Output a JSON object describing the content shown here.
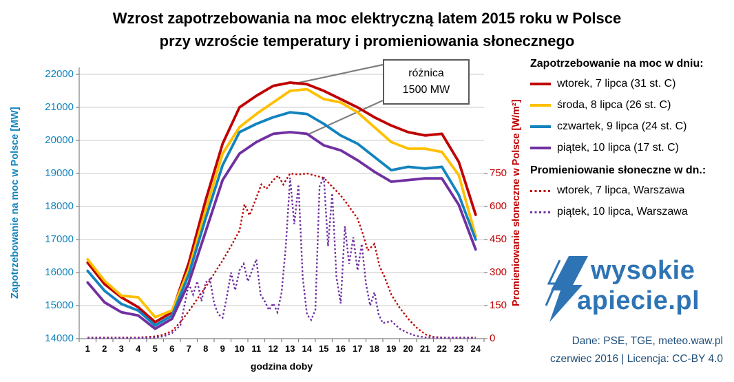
{
  "title": {
    "line1": "Wzrost zapotrzebowania na moc elektryczną latem 2015 roku w Polsce",
    "line2": "przy wzroście temperatury i promieniowania słonecznego"
  },
  "chart_data": {
    "type": "line",
    "x_label": "godzina doby",
    "x_ticks": [
      1,
      2,
      3,
      4,
      5,
      6,
      7,
      8,
      9,
      10,
      11,
      12,
      13,
      14,
      15,
      16,
      17,
      18,
      19,
      20,
      21,
      22,
      23,
      24
    ],
    "left_axis": {
      "label": "Zapotrzebowanie na moc w Polsce [MW]",
      "range": [
        14000,
        22000
      ],
      "ticks": [
        14000,
        15000,
        16000,
        17000,
        18000,
        19000,
        20000,
        21000,
        22000
      ],
      "color": "#1283BE"
    },
    "right_axis": {
      "label": "Promieniowanie słoneczne w Polsce [W/m²]",
      "range": [
        0,
        1200
      ],
      "labeled_ticks": [
        0,
        150,
        300,
        450,
        600,
        750
      ],
      "color": "#C00000"
    },
    "demand_series": [
      {
        "name": "wtorek, 7 lipca (31 st. C)",
        "color": "#C00000",
        "style": "solid",
        "values": [
          16300,
          15650,
          15250,
          14950,
          14500,
          14800,
          16300,
          18200,
          19900,
          21000,
          21350,
          21650,
          21750,
          21700,
          21500,
          21250,
          21000,
          20700,
          20450,
          20250,
          20150,
          20200,
          19350,
          17750
        ]
      },
      {
        "name": "środa, 8 lipca (26 st. C)",
        "color": "#FFC000",
        "style": "solid",
        "values": [
          16400,
          15750,
          15300,
          15250,
          14650,
          14850,
          16100,
          17900,
          19600,
          20400,
          20800,
          21150,
          21500,
          21550,
          21250,
          21150,
          20850,
          20400,
          19950,
          19750,
          19750,
          19650,
          18950,
          17100
        ]
      },
      {
        "name": "czwartek, 9 lipca (24 st. C)",
        "color": "#1283BE",
        "style": "solid",
        "values": [
          16050,
          15450,
          15050,
          14850,
          14400,
          14700,
          15950,
          17650,
          19250,
          20250,
          20500,
          20700,
          20850,
          20800,
          20500,
          20150,
          19900,
          19500,
          19100,
          19200,
          19150,
          19200,
          18350,
          17000
        ]
      },
      {
        "name": "piątek, 10 lipca (17 st. C)",
        "color": "#7030A0",
        "style": "solid",
        "values": [
          15700,
          15100,
          14800,
          14700,
          14300,
          14600,
          15700,
          17250,
          18800,
          19600,
          19950,
          20200,
          20250,
          20200,
          19850,
          19700,
          19400,
          19050,
          18750,
          18800,
          18850,
          18850,
          18050,
          16700
        ]
      }
    ],
    "radiation_series": [
      {
        "name": "wtorek, 7 lipca, Warszawa",
        "color": "#C00000",
        "style": "dotted",
        "x": [
          1,
          2,
          3,
          4,
          5,
          5.5,
          6,
          6.5,
          7,
          7.5,
          8,
          8.5,
          9,
          9.5,
          10,
          10.3,
          10.6,
          11,
          11.3,
          11.6,
          12,
          12.3,
          12.6,
          13,
          13.5,
          14,
          14.5,
          15,
          15.5,
          16,
          16.5,
          17,
          17.3,
          17.6,
          18,
          18.3,
          18.6,
          19,
          19.5,
          20,
          20.5,
          21,
          21.5,
          22,
          23,
          24
        ],
        "values": [
          5,
          5,
          5,
          5,
          10,
          18,
          35,
          75,
          125,
          180,
          235,
          295,
          355,
          420,
          490,
          610,
          560,
          640,
          700,
          680,
          720,
          740,
          700,
          750,
          745,
          750,
          740,
          730,
          690,
          650,
          600,
          545,
          480,
          400,
          430,
          330,
          280,
          200,
          140,
          90,
          50,
          20,
          8,
          5,
          5,
          5
        ]
      },
      {
        "name": "piątek, 10 lipca, Warszawa",
        "color": "#7030A0",
        "style": "dotted",
        "x": [
          1,
          2,
          3,
          4,
          5,
          5.5,
          6,
          6.5,
          7,
          7.25,
          7.5,
          7.75,
          8,
          8.25,
          8.5,
          8.75,
          9,
          9.25,
          9.5,
          9.75,
          10,
          10.25,
          10.5,
          10.75,
          11,
          11.25,
          11.5,
          11.75,
          12,
          12.25,
          12.5,
          12.75,
          13,
          13.25,
          13.5,
          13.75,
          14,
          14.25,
          14.5,
          14.75,
          15,
          15.25,
          15.5,
          15.75,
          16,
          16.25,
          16.5,
          16.75,
          17,
          17.25,
          17.5,
          17.75,
          18,
          18.25,
          18.5,
          19,
          19.5,
          20,
          20.5,
          21,
          22,
          23,
          24
        ],
        "values": [
          3,
          3,
          3,
          3,
          5,
          10,
          25,
          60,
          250,
          200,
          260,
          170,
          255,
          270,
          160,
          110,
          95,
          190,
          300,
          220,
          310,
          340,
          260,
          310,
          360,
          200,
          170,
          130,
          160,
          120,
          210,
          420,
          730,
          520,
          700,
          280,
          110,
          85,
          130,
          690,
          735,
          420,
          660,
          280,
          160,
          510,
          340,
          460,
          310,
          430,
          250,
          150,
          210,
          110,
          70,
          80,
          45,
          25,
          12,
          6,
          4,
          4,
          4
        ]
      }
    ],
    "annotation": {
      "line1": "różnica",
      "line2": "1500 MW"
    }
  },
  "legend": {
    "demand_header": "Zapotrzebowanie na moc w dniu:",
    "radiation_header": "Promieniowanie słoneczne w dn.:"
  },
  "logo": {
    "line1": "wysokie",
    "line2": "apiecie.pl"
  },
  "credits": {
    "line1": "Dane: PSE, TGE, meteo.waw.pl",
    "line2": "czerwiec 2016  |  Licencja: CC-BY 4.0"
  }
}
